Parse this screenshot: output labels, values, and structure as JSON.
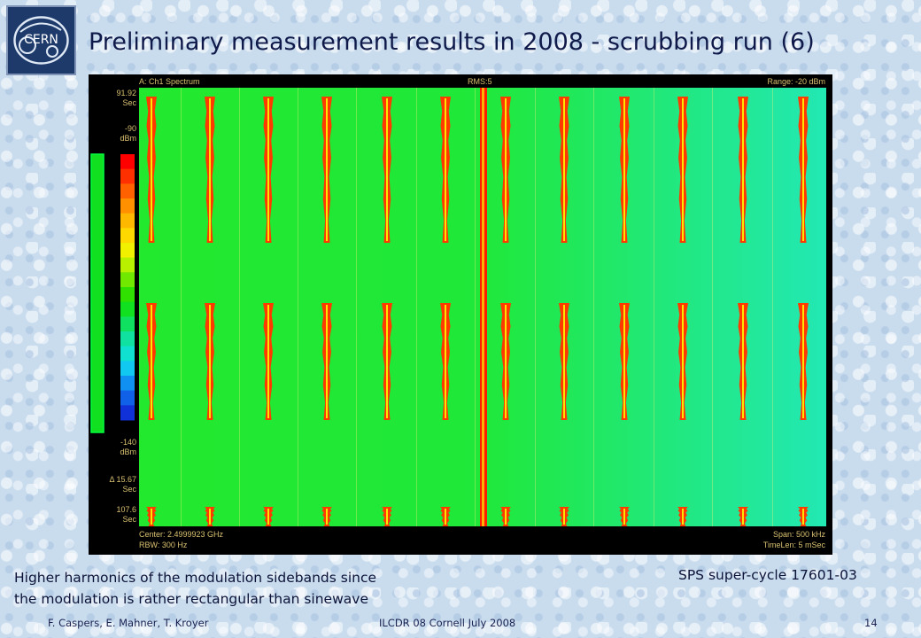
{
  "slide": {
    "title": "Preliminary measurement results in 2008 - scrubbing run (6)",
    "logo_text": "CERN",
    "caption_line1": "Higher harmonics of the modulation sidebands since",
    "caption_line2": "the modulation is rather rectangular than sinewave",
    "sps_label": "SPS super-cycle 17601-03",
    "footer_authors": "F. Caspers, E. Mahner, T. Kroyer",
    "footer_event": "ILCDR 08 Cornell July 2008",
    "page_number": "14"
  },
  "spectrogram": {
    "top_left": "A: Ch1 Spectrum",
    "top_center": "RMS:5",
    "top_right": "Range: -20 dBm",
    "time_top_value": "91.92",
    "time_top_unit": "Sec",
    "scale_top_value": "-90",
    "scale_top_unit": "dBm",
    "scale_bottom_value": "-140",
    "scale_bottom_unit": "dBm",
    "delta_value": "Δ 15.67",
    "delta_unit": "Sec",
    "time_bottom_value": "107.6",
    "time_bottom_unit": "Sec",
    "bottom_left_1": "Center: 2.4999923 GHz",
    "bottom_left_2": "RBW: 300 Hz",
    "bottom_right_1": "Span: 500 kHz",
    "bottom_right_2": "TimeLen: 5 mSec",
    "colors": {
      "background_left": "#22e82e",
      "background_right": "#22e8b4",
      "carrier": "#ff1e00",
      "sideband_outer": "#ff3a00",
      "sideband_inner": "#ffe600"
    },
    "colorscale": [
      "#ff0000",
      "#ff3000",
      "#ff6000",
      "#ff9000",
      "#ffb800",
      "#ffd800",
      "#f0f000",
      "#b8f000",
      "#70e800",
      "#30e000",
      "#10e020",
      "#10e060",
      "#10e0a0",
      "#10e0d0",
      "#10c8f0",
      "#1090f0",
      "#1060e8",
      "#1030d8"
    ]
  }
}
